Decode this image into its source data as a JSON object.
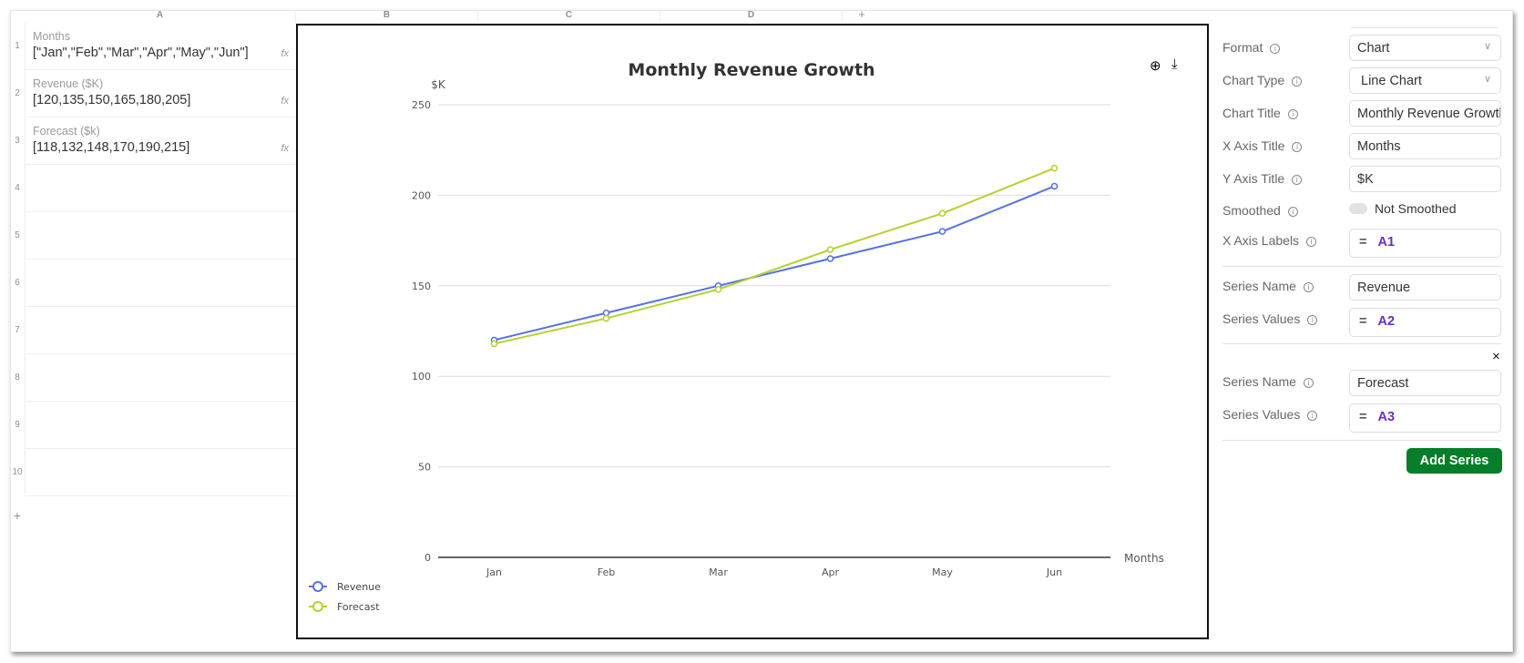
{
  "sheet": {
    "columns": [
      "A",
      "B",
      "C",
      "D",
      "+"
    ],
    "rows": [
      "1",
      "2",
      "3",
      "4",
      "5",
      "6",
      "7",
      "8",
      "9",
      "10"
    ],
    "add_row": "+",
    "cells": [
      {
        "label": "Months",
        "value": "[\"Jan\",\"Feb\",\"Mar\",\"Apr\",\"May\",\"Jun\"]",
        "fx": "fx"
      },
      {
        "label": "Revenue ($K)",
        "value": "[120,135,150,165,180,205]",
        "fx": "fx"
      },
      {
        "label": "Forecast ($k)",
        "value": "[118,132,148,170,190,215]",
        "fx": "fx"
      }
    ]
  },
  "chart_data": {
    "type": "line",
    "title": "Monthly Revenue Growth",
    "xlabel": "Months",
    "ylabel": "$K",
    "categories": [
      "Jan",
      "Feb",
      "Mar",
      "Apr",
      "May",
      "Jun"
    ],
    "ylim": [
      0,
      250
    ],
    "yticks": [
      "0",
      "50",
      "100",
      "150",
      "200",
      "250"
    ],
    "grid": true,
    "legend": "bottom-left",
    "smoothed": false,
    "series": [
      {
        "name": "Revenue",
        "values": [
          120,
          135,
          150,
          165,
          180,
          205
        ],
        "color": "#5470e6"
      },
      {
        "name": "Forecast",
        "values": [
          118,
          132,
          148,
          170,
          190,
          215
        ],
        "color": "#b3d22c"
      }
    ]
  },
  "toolbar": {
    "zoom_icon": "zoom-icon",
    "download_icon": "download-icon"
  },
  "panel": {
    "format_label": "Format",
    "format_value": "Chart",
    "chart_type_label": "Chart Type",
    "chart_type_value": "Line Chart",
    "chart_title_label": "Chart Title",
    "chart_title_value": "Monthly Revenue Growth",
    "x_title_label": "X Axis Title",
    "x_title_value": "Months",
    "y_title_label": "Y Axis Title",
    "y_title_value": "$K",
    "smoothed_label": "Smoothed",
    "smoothed_value": "Not Smoothed",
    "x_labels_label": "X Axis Labels",
    "x_labels_ref": "A1",
    "series": [
      {
        "name_label": "Series Name",
        "name_value": "Revenue",
        "values_label": "Series Values",
        "values_ref": "A2"
      },
      {
        "name_label": "Series Name",
        "name_value": "Forecast",
        "values_label": "Series Values",
        "values_ref": "A3",
        "remove": "×"
      }
    ],
    "eq": "=",
    "add_series": "Add Series",
    "accent": "#067d2a"
  }
}
